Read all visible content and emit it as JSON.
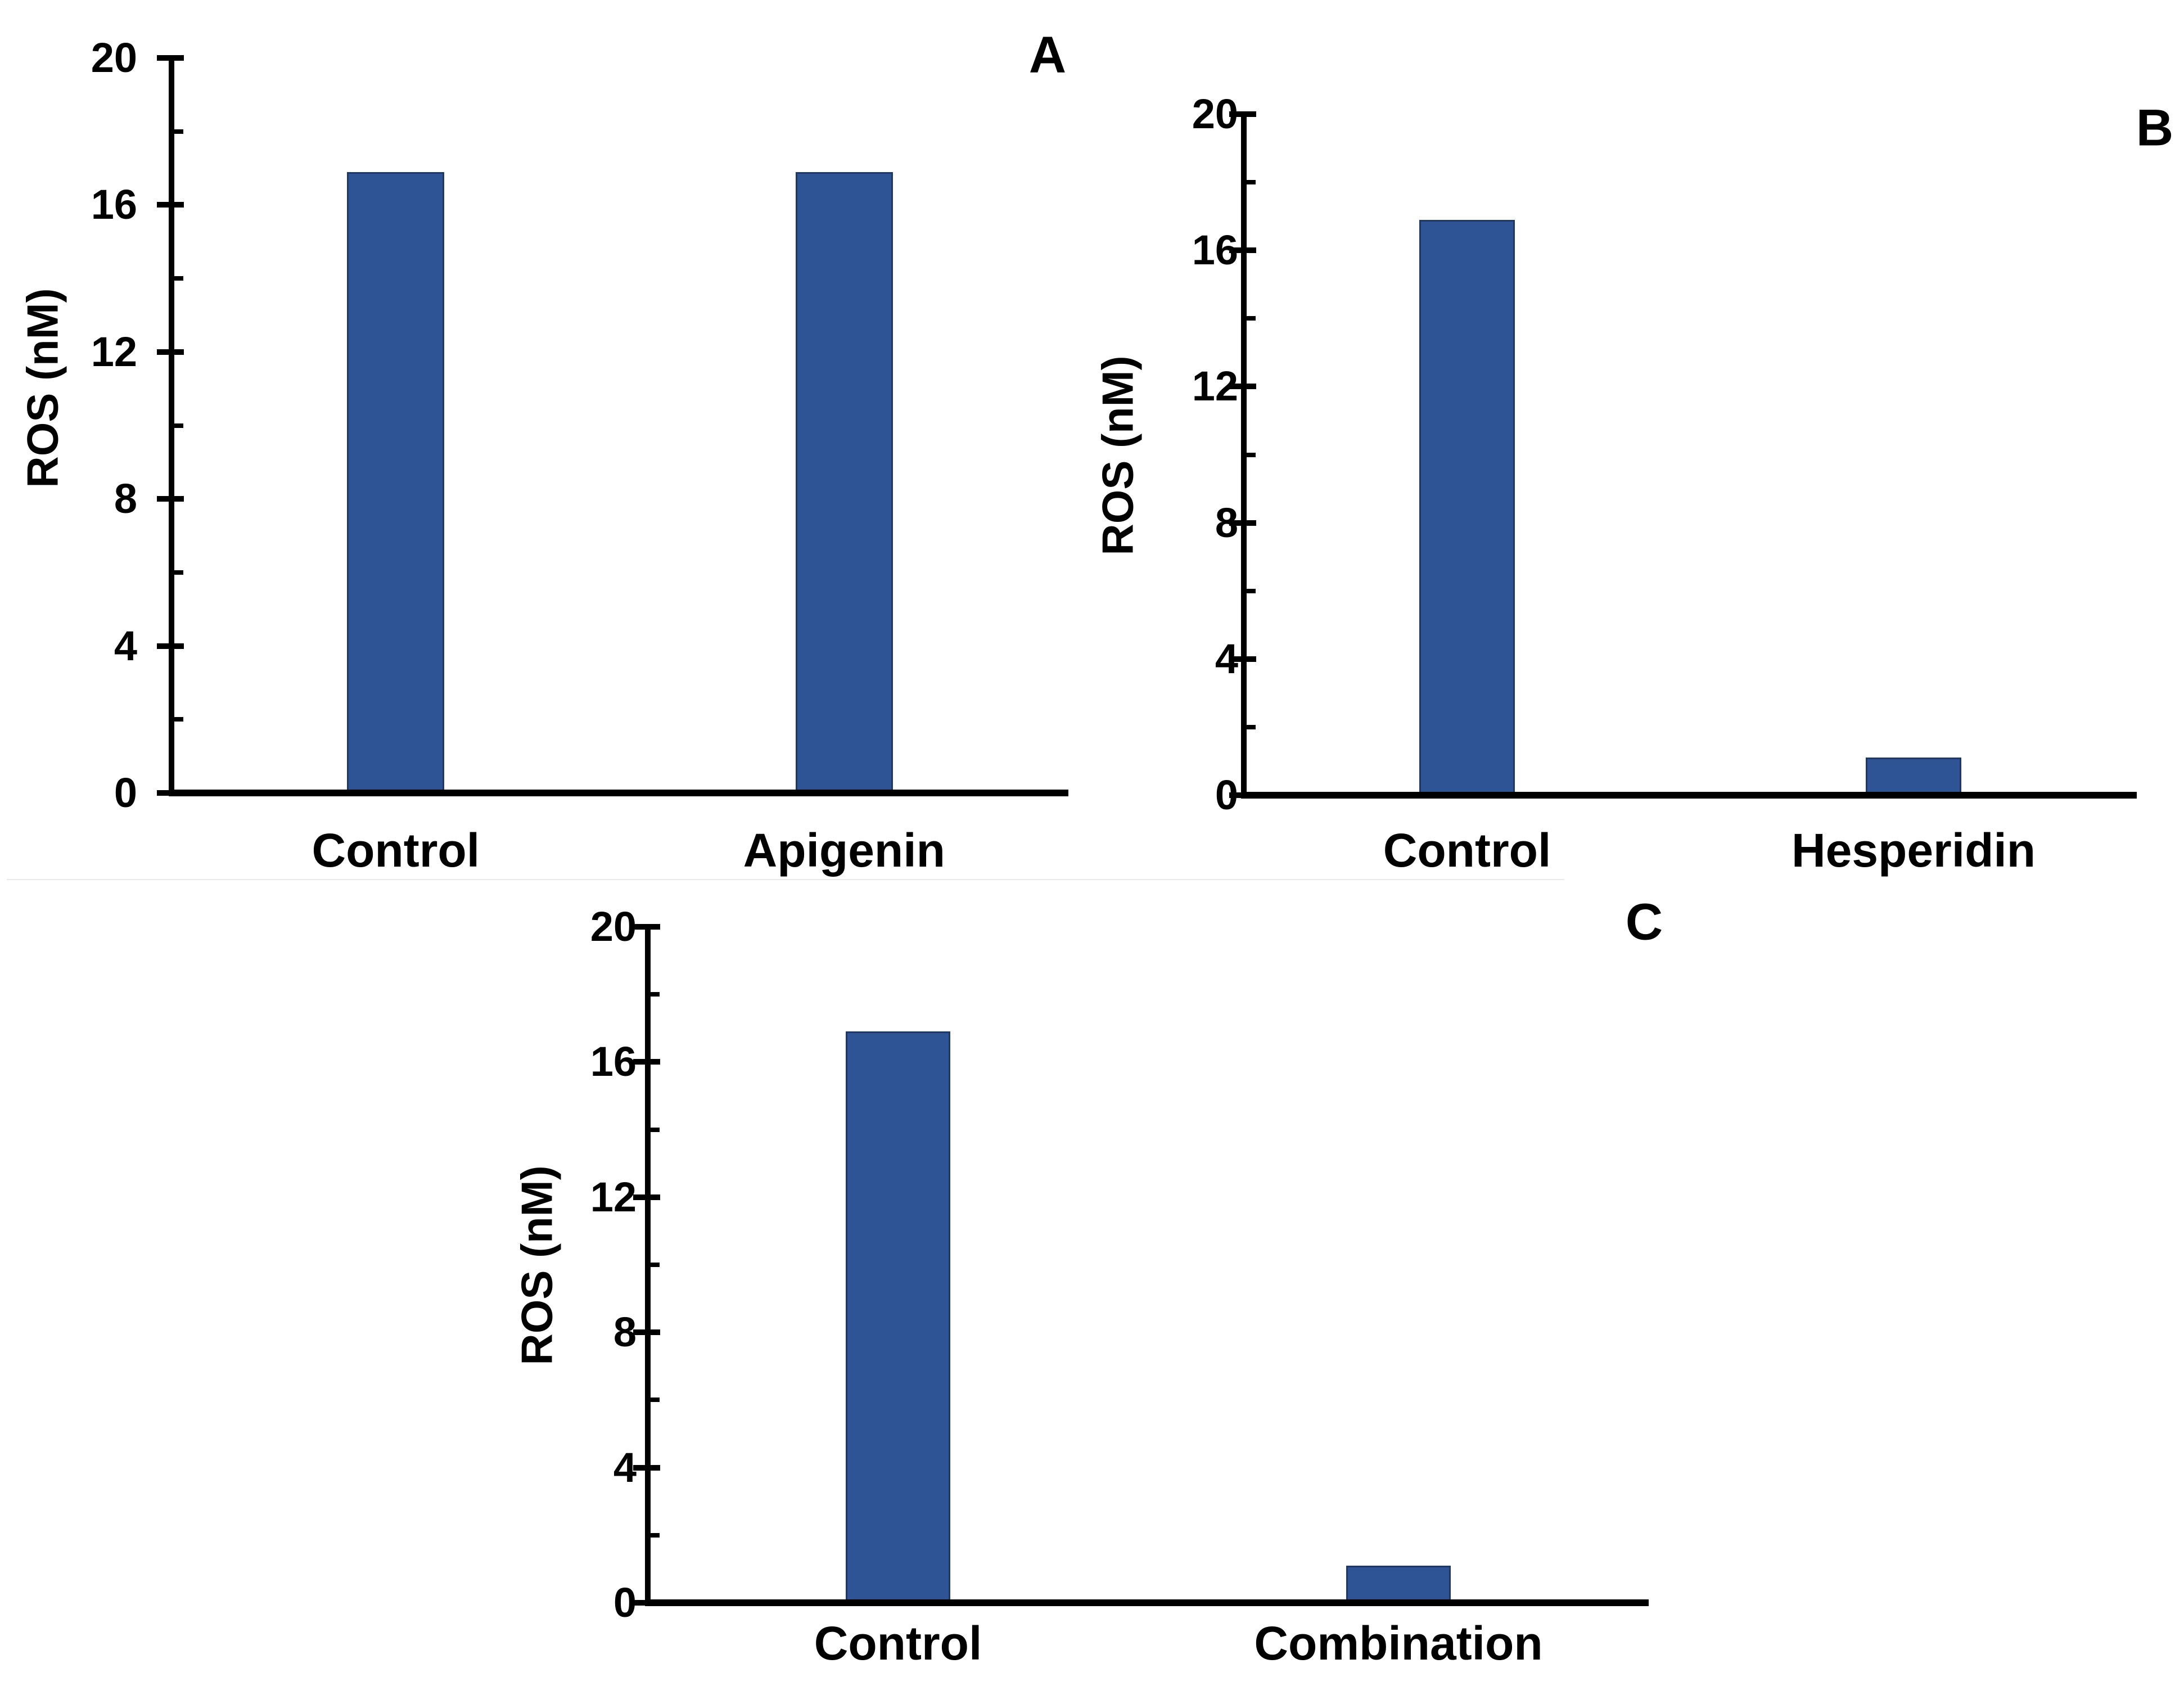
{
  "figure": {
    "background": "#FFFFFF",
    "axis_color": "#000000",
    "text_color": "#000000",
    "bar_fill": "#2F5496",
    "bar_border": "#1F3864"
  },
  "chart_data": [
    {
      "type": "bar",
      "panel_label": "A",
      "title": "",
      "ylabel": "ROS (nM)",
      "categories": [
        "Control",
        "Apigenin"
      ],
      "values": [
        16.9,
        16.9
      ],
      "ylim": [
        0,
        20
      ],
      "yticks_major": [
        0,
        4,
        8,
        12,
        16,
        20
      ],
      "yticks_minor": [
        2,
        6,
        10,
        14,
        18
      ],
      "grid": false,
      "legend": false,
      "bar_color": "#2F5496",
      "bar_border": "#1F3864"
    },
    {
      "type": "bar",
      "panel_label": "B",
      "title": "",
      "ylabel": "ROS (nM)",
      "categories": [
        "Control",
        "Hesperidin"
      ],
      "values": [
        16.9,
        1.1
      ],
      "ylim": [
        0,
        20
      ],
      "yticks_major": [
        0,
        4,
        8,
        12,
        16,
        20
      ],
      "yticks_minor": [
        2,
        6,
        10,
        14,
        18
      ],
      "grid": false,
      "legend": false,
      "bar_color": "#2F5496",
      "bar_border": "#1F3864"
    },
    {
      "type": "bar",
      "panel_label": "C",
      "title": "",
      "ylabel": "ROS (nM)",
      "categories": [
        "Control",
        "Combination"
      ],
      "values": [
        16.9,
        1.1
      ],
      "ylim": [
        0,
        20
      ],
      "yticks_major": [
        0,
        4,
        8,
        12,
        16,
        20
      ],
      "yticks_minor": [
        2,
        6,
        10,
        14,
        18
      ],
      "grid": false,
      "legend": false,
      "bar_color": "#2F5496",
      "bar_border": "#1F3864"
    }
  ]
}
